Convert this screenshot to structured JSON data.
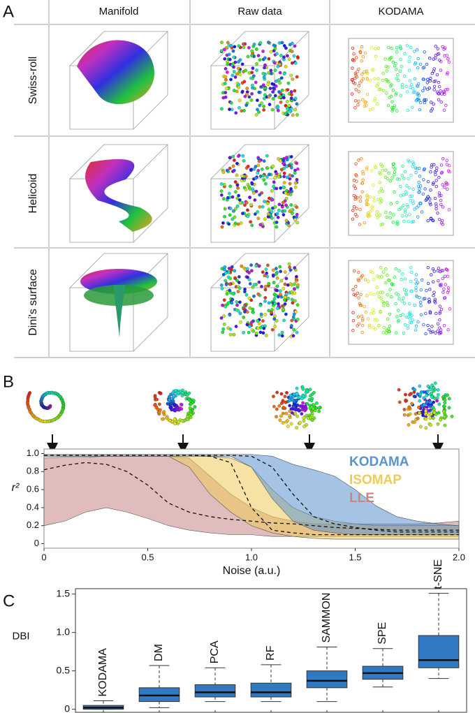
{
  "panel_labels": [
    "A",
    "B",
    "C"
  ],
  "grid": {
    "columns": [
      "Manifold",
      "Raw data",
      "KODAMA"
    ],
    "rows": [
      "Swiss-roll",
      "Helicoid",
      "Dini's surface"
    ]
  },
  "chart_data": [
    {
      "type": "band",
      "xlabel": "Noise (a.u.)",
      "ylabel": "r²",
      "x": [
        0,
        0.1,
        0.2,
        0.3,
        0.4,
        0.5,
        0.6,
        0.7,
        0.8,
        0.9,
        1.0,
        1.1,
        1.2,
        1.3,
        1.4,
        1.5,
        1.6,
        1.7,
        1.8,
        1.9,
        2.0
      ],
      "xlim": [
        0,
        2
      ],
      "xticks": [
        0,
        0.5,
        {
          "value": 1,
          "label": "1.0"
        },
        1.5,
        {
          "value": 2,
          "label": "2.0"
        }
      ],
      "ylim": [
        -0.05,
        1.05
      ],
      "yticks": [
        0,
        0.2,
        0.4,
        0.6,
        0.8,
        {
          "value": 1,
          "label": "1.0"
        }
      ],
      "series": [
        {
          "name": "KODAMA",
          "color": "#5b93cf",
          "upper": [
            0.99,
            0.99,
            0.99,
            0.99,
            0.99,
            0.99,
            0.99,
            0.99,
            0.99,
            0.99,
            0.99,
            0.97,
            0.88,
            0.82,
            0.75,
            0.6,
            0.42,
            0.3,
            0.25,
            0.22,
            0.2
          ],
          "lower": [
            0.97,
            0.97,
            0.97,
            0.97,
            0.97,
            0.97,
            0.97,
            0.97,
            0.97,
            0.97,
            0.85,
            0.5,
            0.25,
            0.15,
            0.12,
            0.1,
            0.1,
            0.1,
            0.1,
            0.1,
            0.1
          ],
          "values": [
            0.98,
            0.98,
            0.98,
            0.98,
            0.98,
            0.98,
            0.98,
            0.98,
            0.98,
            0.98,
            0.97,
            0.85,
            0.55,
            0.3,
            0.22,
            0.18,
            0.15,
            0.13,
            0.13,
            0.13,
            0.13
          ]
        },
        {
          "name": "ISOMAP",
          "color": "#efcb5a",
          "upper": [
            0.99,
            0.99,
            0.99,
            0.99,
            0.99,
            0.99,
            0.99,
            0.99,
            0.97,
            0.95,
            0.85,
            0.6,
            0.4,
            0.3,
            0.25,
            0.22,
            0.2,
            0.2,
            0.2,
            0.2,
            0.2
          ],
          "lower": [
            0.97,
            0.97,
            0.97,
            0.97,
            0.97,
            0.97,
            0.97,
            0.85,
            0.55,
            0.35,
            0.2,
            0.12,
            0.08,
            0.06,
            0.05,
            0.05,
            0.05,
            0.05,
            0.05,
            0.05,
            0.05
          ],
          "values": [
            0.98,
            0.98,
            0.98,
            0.98,
            0.98,
            0.98,
            0.98,
            0.98,
            0.97,
            0.9,
            0.4,
            0.15,
            0.12,
            0.1,
            0.1,
            0.1,
            0.1,
            0.1,
            0.1,
            0.1,
            0.1
          ]
        },
        {
          "name": "LLE",
          "color": "#c98585",
          "upper": [
            0.95,
            0.96,
            0.96,
            0.97,
            0.97,
            0.97,
            0.97,
            0.95,
            0.75,
            0.55,
            0.4,
            0.3,
            0.25,
            0.22,
            0.22,
            0.22,
            0.22,
            0.22,
            0.22,
            0.23,
            0.25
          ],
          "lower": [
            0.2,
            0.25,
            0.35,
            0.4,
            0.35,
            0.28,
            0.2,
            0.15,
            0.12,
            0.1,
            0.1,
            0.08,
            0.08,
            0.08,
            0.08,
            0.08,
            0.08,
            0.08,
            0.08,
            0.08,
            0.08
          ],
          "values": [
            0.82,
            0.87,
            0.9,
            0.88,
            0.8,
            0.65,
            0.45,
            0.35,
            0.3,
            0.27,
            0.25,
            0.23,
            0.22,
            0.2,
            0.18,
            0.17,
            0.16,
            0.15,
            0.15,
            0.15,
            0.15
          ]
        }
      ]
    },
    {
      "type": "box",
      "ylabel": "DBI",
      "color": "#2f7ac3",
      "categories": [
        "KODAMA",
        "DM",
        "PCA",
        "RF",
        "SAMMON",
        "SPE",
        "t-SNE"
      ],
      "ylim": [
        -0.04,
        1.57
      ],
      "yticks": [
        0,
        0.5,
        {
          "value": 1,
          "label": "1.0"
        },
        1.5
      ],
      "min": [
        0,
        0.02,
        0.1,
        0.1,
        0.1,
        0.29,
        0.4
      ],
      "q1": [
        0,
        0.1,
        0.16,
        0.16,
        0.28,
        0.39,
        0.54
      ],
      "median": [
        0.02,
        0.18,
        0.22,
        0.22,
        0.37,
        0.47,
        0.64
      ],
      "q3": [
        0.05,
        0.28,
        0.32,
        0.34,
        0.5,
        0.56,
        0.96
      ],
      "max": [
        0.11,
        0.57,
        0.54,
        0.58,
        0.81,
        0.79,
        1.51
      ]
    }
  ]
}
